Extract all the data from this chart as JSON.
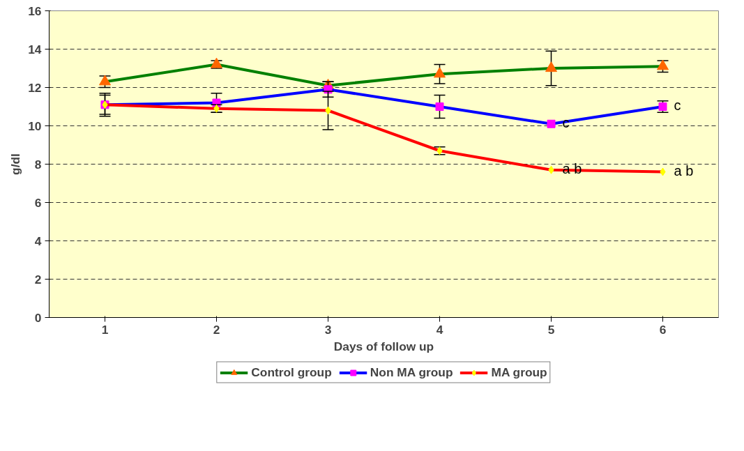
{
  "chart_data": {
    "type": "line",
    "xlabel": "Days of follow up",
    "ylabel": "g/dl",
    "categories": [
      "1",
      "2",
      "3",
      "4",
      "5",
      "6"
    ],
    "ylim": [
      0,
      16
    ],
    "yticks": [
      0,
      2,
      4,
      6,
      8,
      10,
      12,
      14,
      16
    ],
    "grid": "y",
    "legend": "bottom",
    "series": [
      {
        "name": "Control group",
        "color": "#008000",
        "colors": [
          "#ff6600",
          "#ff6600",
          "#ff6600",
          "#ff6600",
          "#ff6600",
          "#ff6600"
        ],
        "marker": "triangle",
        "values": [
          12.3,
          13.2,
          12.1,
          12.7,
          13.0,
          13.1
        ],
        "errors": [
          0.3,
          0.2,
          0.2,
          0.5,
          0.9,
          0.3
        ]
      },
      {
        "name": "Non MA group",
        "color": "#0000ff",
        "colors": [
          "#ff00ff",
          "#ff00ff",
          "#ff00ff",
          "#ff00ff",
          "#ff00ff",
          "#ff00ff"
        ],
        "marker": "square",
        "values": [
          11.1,
          11.2,
          11.9,
          11.0,
          10.1,
          11.0
        ],
        "errors": [
          0.5,
          0.5,
          0.4,
          0.6,
          null,
          0.3
        ]
      },
      {
        "name": "MA group",
        "color": "#ff0000",
        "colors": [
          "#ffff00",
          "#ffff00",
          "#ffff00",
          "#ffff00",
          "#ffff00",
          "#ffff00"
        ],
        "marker": "diamond",
        "values": [
          11.1,
          10.9,
          10.8,
          8.7,
          7.7,
          7.6
        ],
        "errors": [
          0.6,
          0.2,
          1.0,
          0.2,
          null,
          null
        ]
      }
    ],
    "annotations": [
      {
        "text": "c",
        "x": "5",
        "y": 10.1
      },
      {
        "text": "c",
        "x": "6",
        "y": 11.0
      },
      {
        "text": "a b",
        "x": "5",
        "y": 7.7
      },
      {
        "text": "a b",
        "x": "6",
        "y": 7.6
      }
    ]
  }
}
